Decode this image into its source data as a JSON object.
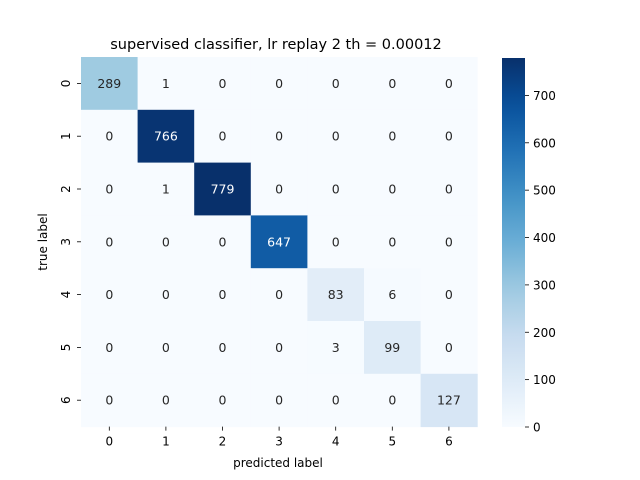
{
  "chart_data": {
    "type": "heatmap",
    "title": "supervised classifier, lr replay 2 th = 0.00012",
    "xlabel": "predicted label",
    "ylabel": "true label",
    "x_categories": [
      "0",
      "1",
      "2",
      "3",
      "4",
      "5",
      "6"
    ],
    "y_categories": [
      "0",
      "1",
      "2",
      "3",
      "4",
      "5",
      "6"
    ],
    "matrix": [
      [
        289,
        1,
        0,
        0,
        0,
        0,
        0
      ],
      [
        0,
        766,
        0,
        0,
        0,
        0,
        0
      ],
      [
        0,
        1,
        779,
        0,
        0,
        0,
        0
      ],
      [
        0,
        0,
        0,
        647,
        0,
        0,
        0
      ],
      [
        0,
        0,
        0,
        0,
        83,
        6,
        0
      ],
      [
        0,
        0,
        0,
        0,
        3,
        99,
        0
      ],
      [
        0,
        0,
        0,
        0,
        0,
        0,
        127
      ]
    ],
    "colorbar": {
      "min": 0,
      "max": 779,
      "ticks": [
        0,
        100,
        200,
        300,
        400,
        500,
        600,
        700
      ],
      "colormap": "Blues"
    },
    "grid": false,
    "legend": "colorbar-right"
  }
}
